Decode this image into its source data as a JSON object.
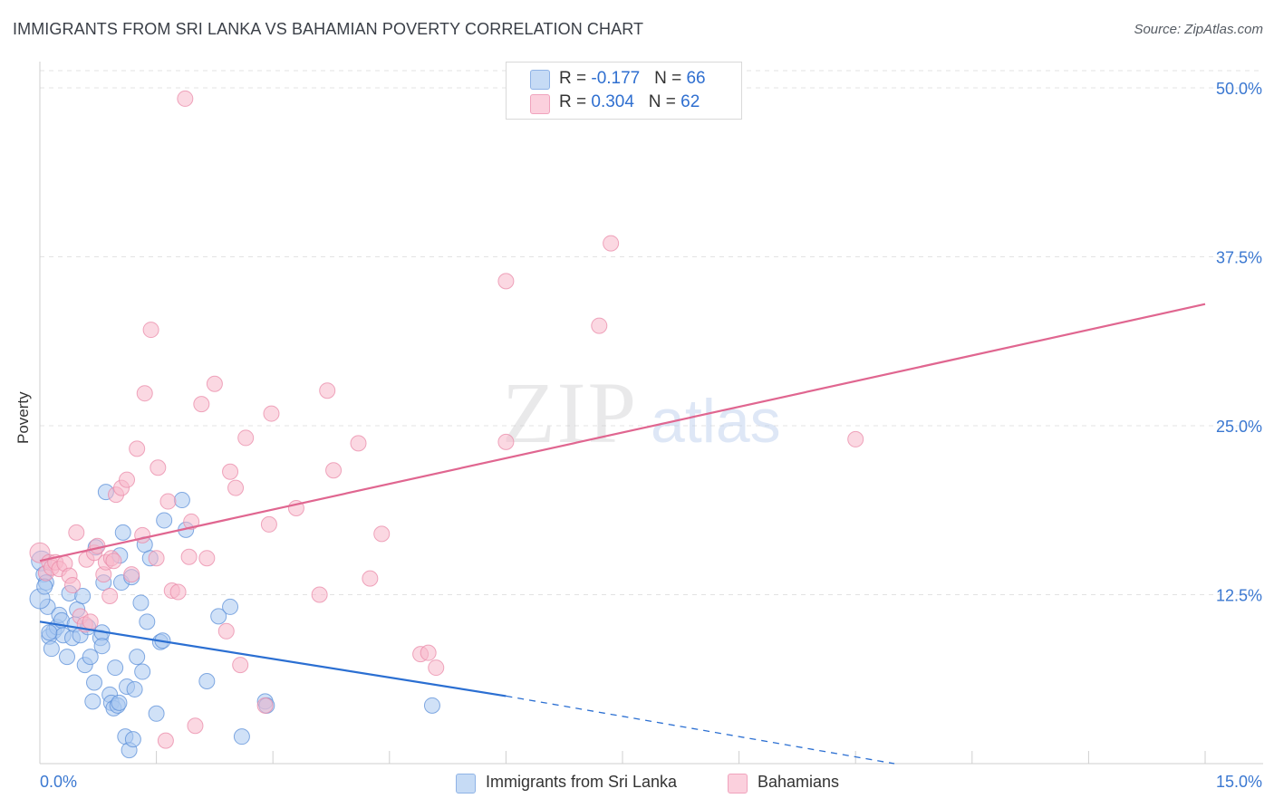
{
  "title": "IMMIGRANTS FROM SRI LANKA VS BAHAMIAN POVERTY CORRELATION CHART",
  "source": "Source: ZipAtlas.com",
  "watermark": {
    "zip": "ZIP",
    "atlas": "atlas"
  },
  "legend": {
    "r_label": "R = ",
    "n_label": "N = ",
    "rows": [
      {
        "r": "-0.177",
        "n": "66",
        "color": "#aac8f0"
      },
      {
        "r": "0.304",
        "n": "62",
        "color": "#f7b8cb"
      }
    ]
  },
  "bottom_legend": [
    {
      "label": "Immigrants from Sri Lanka",
      "color": "#aac8f0"
    },
    {
      "label": "Bahamians",
      "color": "#f7b8cb"
    }
  ],
  "chart_data": {
    "type": "scatter",
    "ylabel": "Poverty",
    "xlim": [
      0,
      15
    ],
    "ylim": [
      0,
      50
    ],
    "x_tick_labels": [
      "0.0%",
      "15.0%"
    ],
    "y_tick_labels": [
      "12.5%",
      "25.0%",
      "37.5%",
      "50.0%"
    ],
    "y_ticks": [
      12.5,
      25,
      37.5,
      50
    ],
    "grid": true,
    "series": [
      {
        "name": "Immigrants from Sri Lanka",
        "color": "#5b8fd8",
        "fill": "#aac8f0",
        "trend_color": "#2b6fd2",
        "trend": {
          "x0": 0,
          "y0": 10.5,
          "x1": 6.0,
          "y1": 5.0,
          "dash_to_x": 11.0,
          "dash_to_y": 0.0
        },
        "points": [
          [
            0.02,
            15.0
          ],
          [
            0.05,
            14.0
          ],
          [
            0.08,
            13.4
          ],
          [
            0.1,
            11.6
          ],
          [
            0.12,
            9.4
          ],
          [
            0.18,
            9.8
          ],
          [
            0.15,
            8.5
          ],
          [
            0.22,
            10.1
          ],
          [
            0.25,
            11.0
          ],
          [
            0.28,
            10.6
          ],
          [
            0.3,
            9.5
          ],
          [
            0.35,
            7.9
          ],
          [
            0.38,
            12.6
          ],
          [
            0.42,
            9.3
          ],
          [
            0.45,
            10.3
          ],
          [
            0.48,
            11.4
          ],
          [
            0.52,
            9.5
          ],
          [
            0.55,
            12.4
          ],
          [
            0.58,
            7.3
          ],
          [
            0.62,
            10.1
          ],
          [
            0.65,
            7.9
          ],
          [
            0.68,
            4.6
          ],
          [
            0.7,
            6.0
          ],
          [
            0.72,
            16.0
          ],
          [
            0.78,
            9.3
          ],
          [
            0.8,
            9.7
          ],
          [
            0.8,
            8.7
          ],
          [
            0.82,
            13.4
          ],
          [
            0.85,
            20.1
          ],
          [
            0.9,
            5.1
          ],
          [
            0.92,
            4.5
          ],
          [
            0.95,
            4.1
          ],
          [
            0.97,
            7.1
          ],
          [
            1.0,
            4.3
          ],
          [
            1.02,
            4.5
          ],
          [
            1.03,
            15.4
          ],
          [
            1.05,
            13.4
          ],
          [
            1.07,
            17.1
          ],
          [
            1.1,
            2.0
          ],
          [
            1.12,
            5.7
          ],
          [
            1.15,
            1.0
          ],
          [
            1.18,
            13.8
          ],
          [
            1.2,
            1.8
          ],
          [
            1.22,
            5.5
          ],
          [
            1.25,
            7.9
          ],
          [
            1.3,
            11.9
          ],
          [
            1.32,
            6.8
          ],
          [
            1.35,
            16.2
          ],
          [
            1.38,
            10.5
          ],
          [
            1.42,
            15.2
          ],
          [
            1.5,
            3.7
          ],
          [
            1.55,
            9.0
          ],
          [
            1.58,
            9.1
          ],
          [
            1.6,
            18.0
          ],
          [
            1.83,
            19.5
          ],
          [
            1.88,
            17.3
          ],
          [
            2.15,
            6.1
          ],
          [
            2.3,
            10.9
          ],
          [
            2.45,
            11.6
          ],
          [
            2.6,
            2.0
          ],
          [
            2.9,
            4.6
          ],
          [
            2.92,
            4.3
          ],
          [
            5.05,
            4.3
          ],
          [
            0.0,
            12.2
          ],
          [
            0.06,
            13.1
          ],
          [
            0.12,
            9.7
          ]
        ]
      },
      {
        "name": "Bahamians",
        "color": "#e98aa8",
        "fill": "#f7b8cb",
        "trend_color": "#e06690",
        "trend": {
          "x0": 0,
          "y0": 15.0,
          "x1": 15.0,
          "y1": 34.0
        },
        "points": [
          [
            0.0,
            15.6
          ],
          [
            0.08,
            14.1
          ],
          [
            0.12,
            14.9
          ],
          [
            0.15,
            14.5
          ],
          [
            0.2,
            14.9
          ],
          [
            0.25,
            14.4
          ],
          [
            0.32,
            14.8
          ],
          [
            0.38,
            13.9
          ],
          [
            0.42,
            13.2
          ],
          [
            0.47,
            17.1
          ],
          [
            0.52,
            10.9
          ],
          [
            0.58,
            10.3
          ],
          [
            0.6,
            15.1
          ],
          [
            0.65,
            10.5
          ],
          [
            0.7,
            15.6
          ],
          [
            0.74,
            16.1
          ],
          [
            0.82,
            14.0
          ],
          [
            0.85,
            14.9
          ],
          [
            0.9,
            12.4
          ],
          [
            0.92,
            15.2
          ],
          [
            0.95,
            15.0
          ],
          [
            0.98,
            19.9
          ],
          [
            1.05,
            20.4
          ],
          [
            1.12,
            21.0
          ],
          [
            1.18,
            14.0
          ],
          [
            1.25,
            23.3
          ],
          [
            1.32,
            16.9
          ],
          [
            1.35,
            27.4
          ],
          [
            1.43,
            32.1
          ],
          [
            1.5,
            15.2
          ],
          [
            1.52,
            21.9
          ],
          [
            1.62,
            1.7
          ],
          [
            1.65,
            19.4
          ],
          [
            1.7,
            12.8
          ],
          [
            1.78,
            12.7
          ],
          [
            1.87,
            49.2
          ],
          [
            1.92,
            15.3
          ],
          [
            1.95,
            17.9
          ],
          [
            2.0,
            2.8
          ],
          [
            2.08,
            26.6
          ],
          [
            2.15,
            15.2
          ],
          [
            2.25,
            28.1
          ],
          [
            2.4,
            9.8
          ],
          [
            2.45,
            21.6
          ],
          [
            2.52,
            20.4
          ],
          [
            2.58,
            7.3
          ],
          [
            2.65,
            24.1
          ],
          [
            2.9,
            4.3
          ],
          [
            2.95,
            17.7
          ],
          [
            2.98,
            25.9
          ],
          [
            3.3,
            18.9
          ],
          [
            3.6,
            12.5
          ],
          [
            3.7,
            27.6
          ],
          [
            3.78,
            21.7
          ],
          [
            4.1,
            23.7
          ],
          [
            4.25,
            13.7
          ],
          [
            4.4,
            17.0
          ],
          [
            4.9,
            8.1
          ],
          [
            5.0,
            8.2
          ],
          [
            5.1,
            7.1
          ],
          [
            6.0,
            35.7
          ],
          [
            6.0,
            23.8
          ]
        ]
      }
    ],
    "extra_points": {
      "Bahamians": [
        [
          7.2,
          32.4
        ],
        [
          7.35,
          38.5
        ],
        [
          10.5,
          24.0
        ]
      ]
    }
  }
}
